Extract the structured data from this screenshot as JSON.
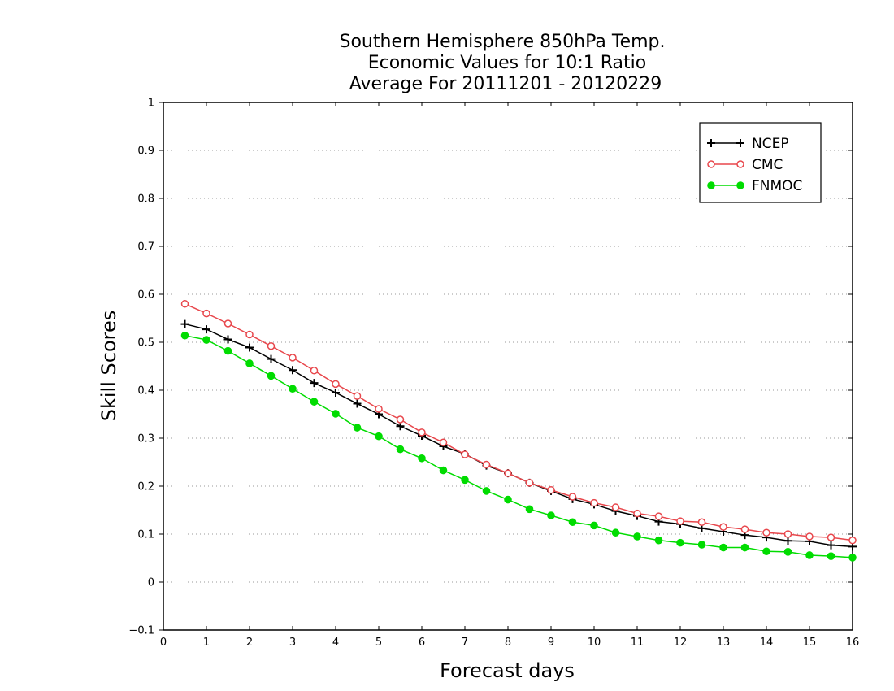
{
  "chart_data": {
    "type": "line",
    "title": [
      "Southern Hemisphere 850hPa Temp.",
      "Economic Values for 10:1 Ratio",
      "Average For 20111201 - 20120229"
    ],
    "xlabel": "Forecast days",
    "ylabel": "Skill Scores",
    "xlim": [
      0,
      16
    ],
    "ylim": [
      -0.1,
      1
    ],
    "xticks": [
      "0",
      "1",
      "2",
      "3",
      "4",
      "5",
      "6",
      "7",
      "8",
      "9",
      "10",
      "11",
      "12",
      "13",
      "14",
      "15",
      "16"
    ],
    "yticks": [
      "−0.1",
      "0",
      "0.1",
      "0.2",
      "0.3",
      "0.4",
      "0.5",
      "0.6",
      "0.7",
      "0.8",
      "0.9",
      "1"
    ],
    "grid": "horizontal dotted",
    "legend_position": "top-right",
    "x": [
      0.5,
      1,
      1.5,
      2,
      2.5,
      3,
      3.5,
      4,
      4.5,
      5,
      5.5,
      6,
      6.5,
      7,
      7.5,
      8,
      8.5,
      9,
      9.5,
      10,
      10.5,
      11,
      11.5,
      12,
      12.5,
      13,
      13.5,
      14,
      14.5,
      15,
      15.5,
      16
    ],
    "series": [
      {
        "name": "NCEP",
        "color": "#000000",
        "marker": "plus",
        "values": [
          0.538,
          0.527,
          0.506,
          0.489,
          0.465,
          0.442,
          0.415,
          0.395,
          0.372,
          0.35,
          0.325,
          0.305,
          0.283,
          0.267,
          0.243,
          0.227,
          0.207,
          0.19,
          0.173,
          0.162,
          0.148,
          0.138,
          0.126,
          0.121,
          0.112,
          0.105,
          0.098,
          0.093,
          0.086,
          0.085,
          0.077,
          0.074
        ]
      },
      {
        "name": "CMC",
        "color": "#e8474c",
        "marker": "open-circle",
        "values": [
          0.58,
          0.56,
          0.539,
          0.516,
          0.492,
          0.468,
          0.441,
          0.413,
          0.388,
          0.361,
          0.339,
          0.312,
          0.291,
          0.266,
          0.245,
          0.227,
          0.207,
          0.192,
          0.178,
          0.165,
          0.156,
          0.143,
          0.137,
          0.127,
          0.125,
          0.115,
          0.11,
          0.103,
          0.1,
          0.095,
          0.093,
          0.087
        ]
      },
      {
        "name": "FNMOC",
        "color": "#00dc00",
        "marker": "filled-circle",
        "values": [
          0.514,
          0.505,
          0.482,
          0.456,
          0.43,
          0.403,
          0.376,
          0.351,
          0.322,
          0.304,
          0.277,
          0.258,
          0.233,
          0.213,
          0.19,
          0.172,
          0.152,
          0.139,
          0.125,
          0.118,
          0.103,
          0.095,
          0.087,
          0.082,
          0.078,
          0.072,
          0.072,
          0.064,
          0.063,
          0.056,
          0.054,
          0.051
        ]
      }
    ]
  }
}
